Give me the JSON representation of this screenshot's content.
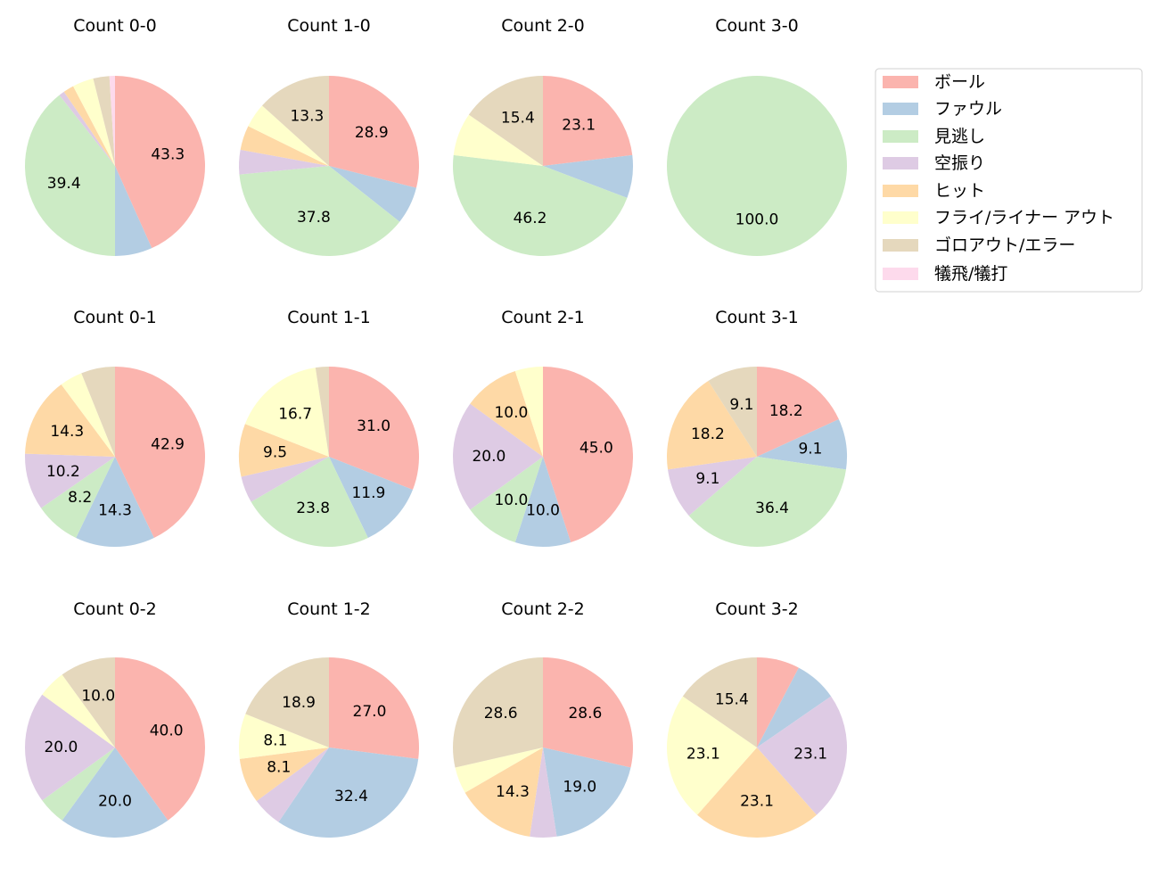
{
  "chart_data": {
    "type": "pie",
    "categories": [
      "ボール",
      "ファウル",
      "見逃し",
      "空振り",
      "ヒット",
      "フライ/ライナー アウト",
      "ゴロアウト/エラー",
      "犠飛/犠打"
    ],
    "colors": [
      "#fbb4ae",
      "#b3cde3",
      "#ccebc5",
      "#decbe4",
      "#fed9a6",
      "#ffffcc",
      "#e5d8bd",
      "#fddaec"
    ],
    "legend_placement": "upper-right",
    "start_angle": "top, clockwise",
    "label_min_percent": 8,
    "pies": [
      {
        "title": "Count 0-0",
        "values": [
          43.3,
          6.7,
          39.4,
          1.0,
          1.9,
          3.8,
          2.9,
          1.0
        ]
      },
      {
        "title": "Count 1-0",
        "values": [
          28.9,
          6.7,
          37.8,
          4.4,
          4.4,
          4.4,
          13.3,
          0
        ]
      },
      {
        "title": "Count 2-0",
        "values": [
          23.1,
          7.7,
          46.2,
          0,
          0,
          7.7,
          15.4,
          0
        ]
      },
      {
        "title": "Count 3-0",
        "values": [
          0,
          0,
          100.0,
          0,
          0,
          0,
          0,
          0
        ]
      },
      {
        "title": "Count 0-1",
        "values": [
          42.9,
          14.3,
          8.2,
          10.2,
          14.3,
          4.1,
          6.1,
          0
        ]
      },
      {
        "title": "Count 1-1",
        "values": [
          31.0,
          11.9,
          23.8,
          4.8,
          9.5,
          16.7,
          2.4,
          0
        ]
      },
      {
        "title": "Count 2-1",
        "values": [
          45.0,
          10.0,
          10.0,
          20.0,
          10.0,
          5.0,
          0,
          0
        ]
      },
      {
        "title": "Count 3-1",
        "values": [
          18.2,
          9.1,
          36.4,
          9.1,
          18.2,
          0,
          9.1,
          0
        ]
      },
      {
        "title": "Count 0-2",
        "values": [
          40.0,
          20.0,
          5.0,
          20.0,
          0,
          5.0,
          10.0,
          0
        ]
      },
      {
        "title": "Count 1-2",
        "values": [
          27.0,
          32.4,
          0,
          5.4,
          8.1,
          8.1,
          18.9,
          0
        ]
      },
      {
        "title": "Count 2-2",
        "values": [
          28.6,
          19.0,
          0,
          4.8,
          14.3,
          4.8,
          28.6,
          0
        ]
      },
      {
        "title": "Count 3-2",
        "values": [
          7.7,
          7.7,
          0,
          23.1,
          23.1,
          23.1,
          15.4,
          0
        ]
      }
    ]
  }
}
